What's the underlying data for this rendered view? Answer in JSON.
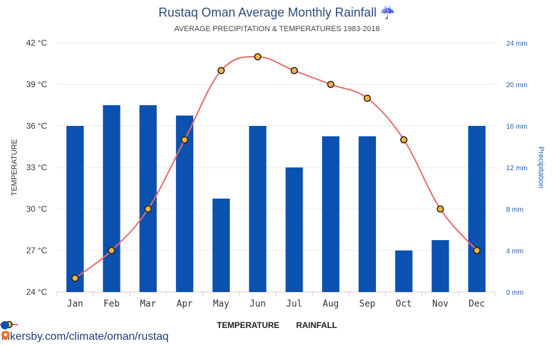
{
  "title": "Rustaq Oman Average Monthly Rainfall",
  "title_icon": "umbrella-icon",
  "subtitle": "AVERAGE PRECIPITATION & TEMPERATURES 1983-2018",
  "source_text": "hikersby.com/climate/oman/rustaq",
  "legend": {
    "temperature_label": "TEMPERATURE",
    "rainfall_label": "RAINFALL"
  },
  "colors": {
    "bar": "#0b51b0",
    "line": "#e86a6a",
    "marker_fill": "#f5b441",
    "marker_stroke": "#222222",
    "right_axis": "#1f5fb0"
  },
  "chart_data": {
    "type": "bar",
    "categories": [
      "Jan",
      "Feb",
      "Mar",
      "Apr",
      "May",
      "Jun",
      "Jul",
      "Aug",
      "Sep",
      "Oct",
      "Nov",
      "Dec"
    ],
    "series": [
      {
        "name": "RAINFALL",
        "type": "bar",
        "axis": "right",
        "values": [
          16,
          18,
          18,
          17,
          9,
          16,
          12,
          15,
          15,
          4,
          5,
          16
        ]
      },
      {
        "name": "TEMPERATURE",
        "type": "line",
        "axis": "left",
        "values": [
          25,
          27,
          30,
          35,
          40,
          41,
          40,
          39,
          38,
          35,
          30,
          27
        ]
      }
    ],
    "left_axis": {
      "label": "TEMPERATURE",
      "ticks": [
        "24 °C",
        "27 °C",
        "30 °C",
        "33 °C",
        "36 °C",
        "39 °C",
        "42 °C"
      ],
      "range": [
        24,
        42
      ]
    },
    "right_axis": {
      "label": "Precipitation",
      "ticks": [
        "0 mm",
        "4 mm",
        "8 mm",
        "12 mm",
        "16 mm",
        "20 mm",
        "24 mm"
      ],
      "range": [
        0,
        24
      ]
    },
    "grid": true,
    "legend_position": "bottom"
  }
}
